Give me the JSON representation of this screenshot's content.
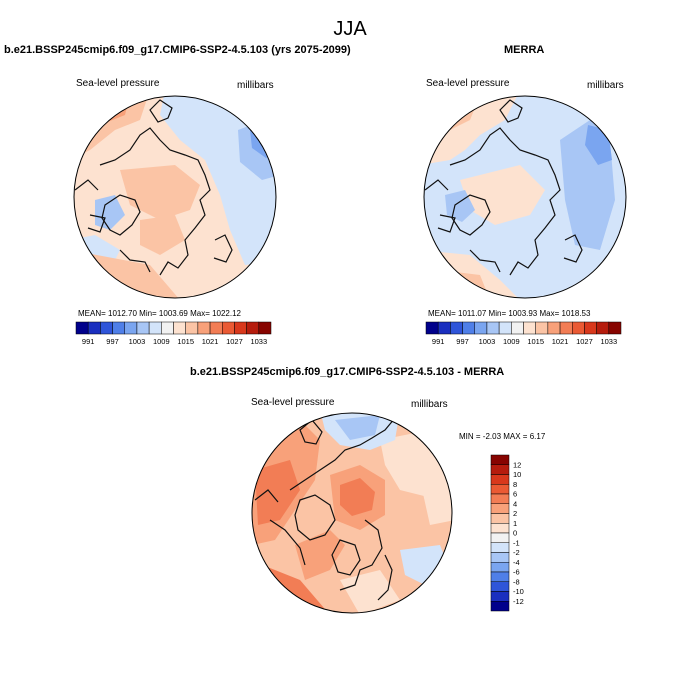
{
  "season": "JJA",
  "panels": [
    {
      "title": "b.e21.BSSP245cmip6.f09_g17.CMIP6-SSP2-4.5.103 (yrs 2075-2099)",
      "variable": "Sea-level pressure",
      "units": "millibars",
      "stats": "MEAN= 1012.70 Min= 1003.69 Max= 1022.12"
    },
    {
      "title": "MERRA",
      "variable": "Sea-level pressure",
      "units": "millibars",
      "stats": "MEAN= 1011.07 Min= 1003.93 Max= 1018.53"
    },
    {
      "title": "b.e21.BSSP245cmip6.f09_g17.CMIP6-SSP2-4.5.103 - MERRA",
      "variable": "Sea-level pressure",
      "units": "millibars",
      "stats": "MIN = -2.03 MAX = 6.17"
    }
  ],
  "abs_colorbar": {
    "labels": [
      "991",
      "997",
      "1003",
      "1009",
      "1015",
      "1021",
      "1027",
      "1033"
    ],
    "colors": [
      "#00008b",
      "#1a2fbf",
      "#2f55d9",
      "#4f7fe8",
      "#7aa5f0",
      "#a8c6f5",
      "#d3e4fa",
      "#f2f2f2",
      "#fde2d0",
      "#fbc4a5",
      "#f8a17a",
      "#f27d55",
      "#ea5a34",
      "#d8381c",
      "#b51c0d",
      "#870400"
    ]
  },
  "diff_colorbar": {
    "labels": [
      "12",
      "10",
      "8",
      "6",
      "4",
      "2",
      "1",
      "0",
      "-1",
      "-2",
      "-4",
      "-6",
      "-8",
      "-10",
      "-12"
    ],
    "colors": [
      "#870400",
      "#b51c0d",
      "#d8381c",
      "#ea5a34",
      "#f27d55",
      "#f8a17a",
      "#fbc4a5",
      "#fde2d0",
      "#f2f2f2",
      "#d3e4fa",
      "#a8c6f5",
      "#7aa5f0",
      "#4f7fe8",
      "#2f55d9",
      "#1a2fbf",
      "#00008b"
    ]
  },
  "field_colors": {
    "light_red": "#fde2d0",
    "salmon": "#fbc4a5",
    "orange": "#f8a17a",
    "deep_orange": "#f27d55",
    "light_blue": "#d3e4fa",
    "mid_blue": "#a8c6f5",
    "blue": "#7aa5f0"
  }
}
